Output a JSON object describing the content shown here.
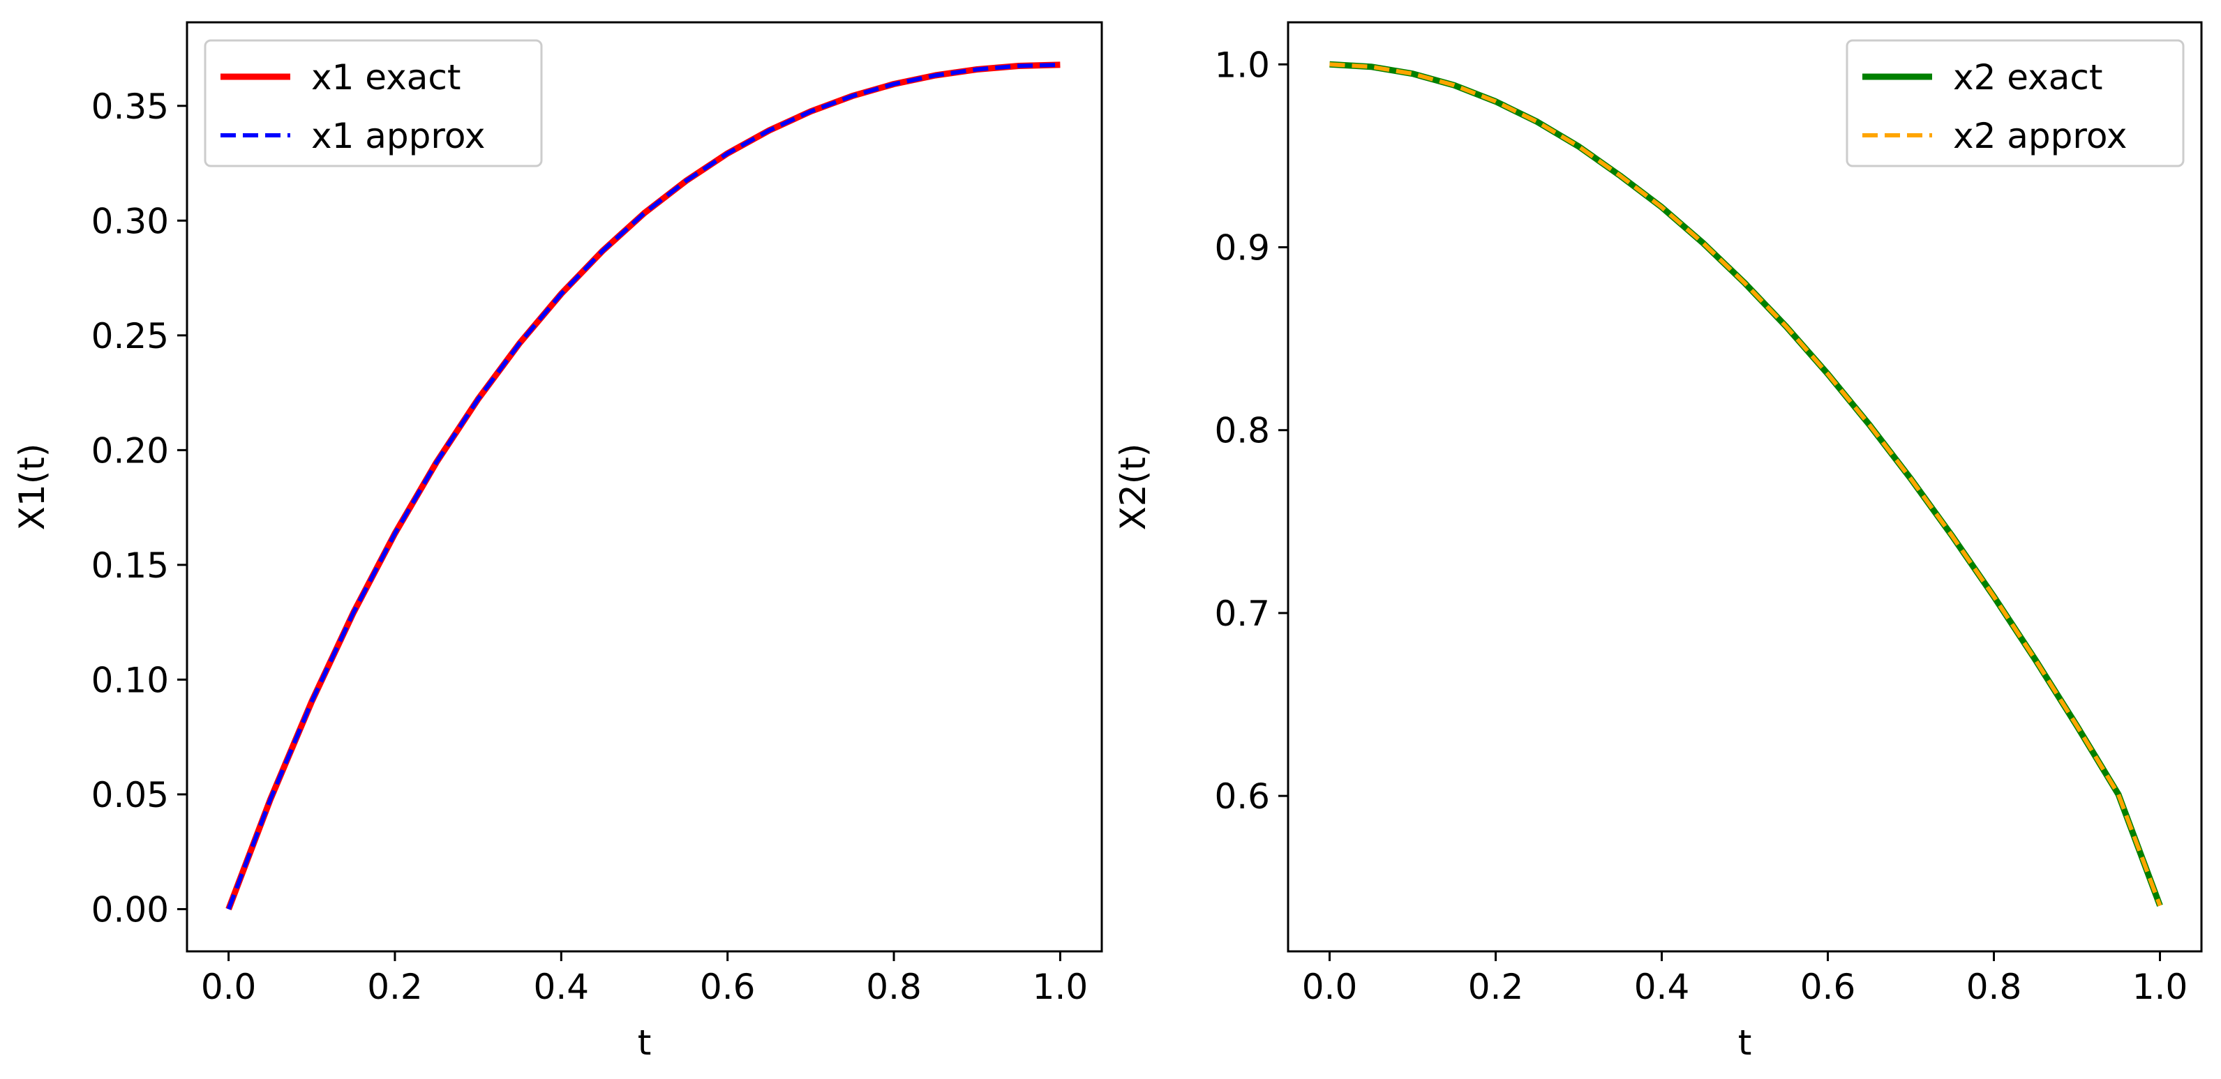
{
  "chart_data": [
    {
      "type": "line",
      "xlabel": "t",
      "ylabel": "X1(t)",
      "xlim": [
        -0.05,
        1.05
      ],
      "ylim": [
        -0.0184,
        0.3864
      ],
      "xticks": [
        0.0,
        0.2,
        0.4,
        0.6,
        0.8,
        1.0
      ],
      "xtick_labels": [
        "0.0",
        "0.2",
        "0.4",
        "0.6",
        "0.8",
        "1.0"
      ],
      "yticks": [
        0.0,
        0.05,
        0.1,
        0.15,
        0.2,
        0.25,
        0.3,
        0.35
      ],
      "ytick_labels": [
        "0.00",
        "0.05",
        "0.10",
        "0.15",
        "0.20",
        "0.25",
        "0.30",
        "0.35"
      ],
      "grid": false,
      "legend_position": "top-left",
      "x": [
        0.0,
        0.05,
        0.1,
        0.15,
        0.2,
        0.25,
        0.3,
        0.35,
        0.4,
        0.45,
        0.5,
        0.55,
        0.6,
        0.65,
        0.7,
        0.75,
        0.8,
        0.85,
        0.9,
        0.95,
        1.0
      ],
      "series": [
        {
          "name": "x1 exact",
          "color": "#ff0000",
          "style": "solid",
          "values": [
            0.0,
            0.0476,
            0.0905,
            0.1291,
            0.1637,
            0.1947,
            0.2222,
            0.2466,
            0.2681,
            0.2869,
            0.3033,
            0.3173,
            0.3293,
            0.3393,
            0.3476,
            0.3543,
            0.3595,
            0.3633,
            0.3659,
            0.3674,
            0.3679
          ]
        },
        {
          "name": "x1 approx",
          "color": "#0000ff",
          "style": "dashed",
          "values": [
            0.0,
            0.0476,
            0.0905,
            0.1291,
            0.1637,
            0.1947,
            0.2222,
            0.2466,
            0.2681,
            0.2869,
            0.3033,
            0.3173,
            0.3293,
            0.3393,
            0.3476,
            0.3543,
            0.3595,
            0.3633,
            0.3659,
            0.3674,
            0.3679
          ]
        }
      ]
    },
    {
      "type": "line",
      "xlabel": "t",
      "ylabel": "X2(t)",
      "xlim": [
        -0.05,
        1.05
      ],
      "ylim": [
        0.515,
        1.023
      ],
      "xticks": [
        0.0,
        0.2,
        0.4,
        0.6,
        0.8,
        1.0
      ],
      "xtick_labels": [
        "0.0",
        "0.2",
        "0.4",
        "0.6",
        "0.8",
        "1.0"
      ],
      "yticks": [
        0.6,
        0.7,
        0.8,
        0.9,
        1.0
      ],
      "ytick_labels": [
        "0.6",
        "0.7",
        "0.8",
        "0.9",
        "1.0"
      ],
      "grid": false,
      "legend_position": "top-right",
      "x": [
        0.0,
        0.05,
        0.1,
        0.15,
        0.2,
        0.25,
        0.3,
        0.35,
        0.4,
        0.45,
        0.5,
        0.55,
        0.6,
        0.65,
        0.7,
        0.75,
        0.8,
        0.85,
        0.9,
        0.95,
        1.0
      ],
      "series": [
        {
          "name": "x2 exact",
          "color": "#008000",
          "style": "solid",
          "values": [
            1.0,
            0.9987,
            0.9949,
            0.9886,
            0.9797,
            0.9686,
            0.9551,
            0.9391,
            0.9219,
            0.9022,
            0.8804,
            0.8566,
            0.8307,
            0.803,
            0.7734,
            0.742,
            0.709,
            0.6744,
            0.6383,
            0.6008,
            0.54
          ]
        },
        {
          "name": "x2 approx",
          "color": "#ffa500",
          "style": "dashed",
          "values": [
            1.0,
            0.9987,
            0.9949,
            0.9886,
            0.9797,
            0.9686,
            0.9551,
            0.9391,
            0.9219,
            0.9022,
            0.8804,
            0.8566,
            0.8307,
            0.803,
            0.7734,
            0.742,
            0.709,
            0.6744,
            0.6383,
            0.6008,
            0.54
          ]
        }
      ]
    }
  ]
}
